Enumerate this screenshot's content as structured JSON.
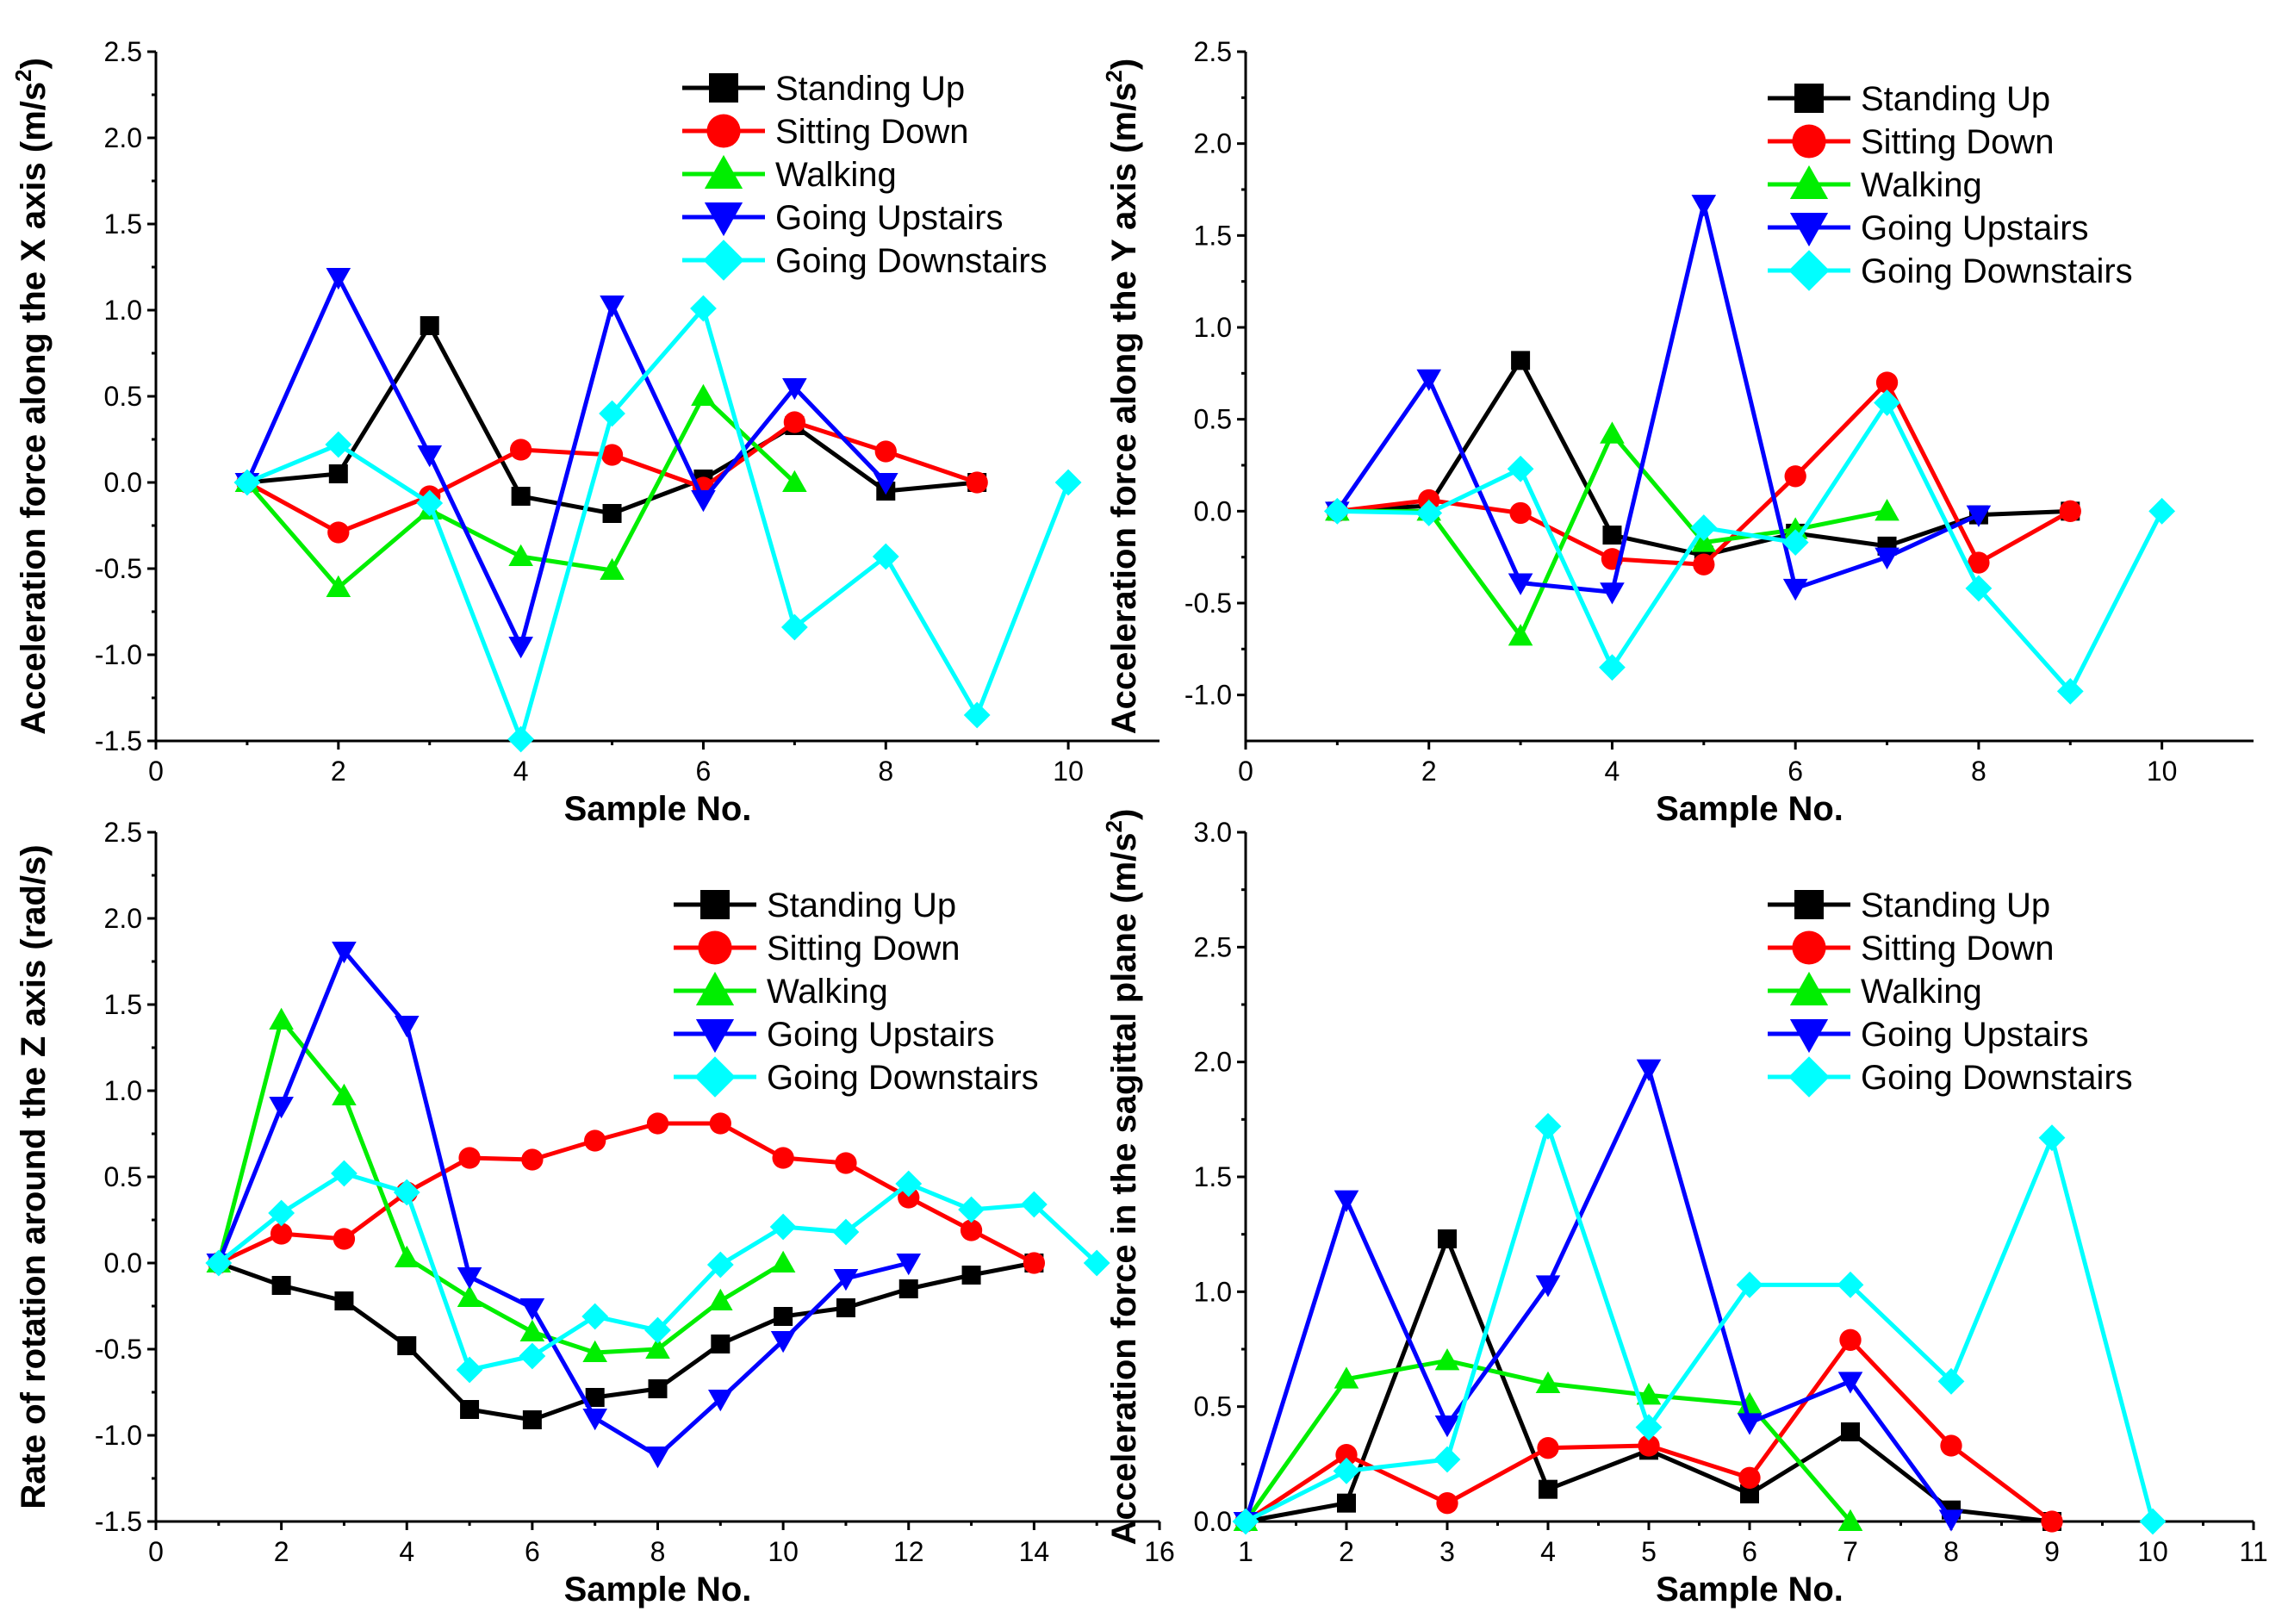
{
  "colors": {
    "Standing Up": "#000000",
    "Sitting Down": "#ff0000",
    "Walking": "#00ee00",
    "Going Upstairs": "#0000ff",
    "Going Downstairs": "#00ffff"
  },
  "markers": {
    "Standing Up": "square",
    "Sitting Down": "circle",
    "Walking": "triangle-up",
    "Going Upstairs": "triangle-down",
    "Going Downstairs": "diamond"
  },
  "chart_data": [
    {
      "type": "line",
      "title": "",
      "xlabel": "Sample No.",
      "ylabel": "Acceleration force along the X axis (m/s",
      "ylabel_sup": "2",
      "ylabel_suffix": ")",
      "xlim": [
        0,
        11
      ],
      "ylim": [
        -1.5,
        2.5
      ],
      "xticks": [
        0,
        2,
        4,
        6,
        8,
        10
      ],
      "xtick_labels": [
        "0",
        "2",
        "4",
        "6",
        "8",
        "10"
      ],
      "yticks": [
        -1.5,
        -1.0,
        -0.5,
        0.0,
        0.5,
        1.0,
        1.5,
        2.0,
        2.5
      ],
      "ytick_labels": [
        "-1.5",
        "-1.0",
        "-0.5",
        "0.0",
        "0.5",
        "1.0",
        "1.5",
        "2.0",
        "2.5"
      ],
      "legend": "top-right",
      "series": [
        {
          "name": "Standing Up",
          "x": [
            1,
            2,
            3,
            4,
            5,
            6,
            7,
            8,
            9
          ],
          "values": [
            0,
            0.05,
            0.91,
            -0.08,
            -0.18,
            0.02,
            0.33,
            -0.05,
            0
          ]
        },
        {
          "name": "Sitting Down",
          "x": [
            1,
            2,
            3,
            4,
            5,
            6,
            7,
            8,
            9
          ],
          "values": [
            0,
            -0.29,
            -0.08,
            0.19,
            0.16,
            -0.03,
            0.35,
            0.18,
            0
          ]
        },
        {
          "name": "Walking",
          "x": [
            1,
            2,
            3,
            4,
            5,
            6,
            7
          ],
          "values": [
            0,
            -0.61,
            -0.16,
            -0.43,
            -0.51,
            0.5,
            0
          ]
        },
        {
          "name": "Going Upstairs",
          "x": [
            1,
            2,
            3,
            4,
            5,
            6,
            7,
            8
          ],
          "values": [
            0,
            1.19,
            0.16,
            -0.95,
            1.03,
            -0.1,
            0.55,
            0
          ]
        },
        {
          "name": "Going Downstairs",
          "x": [
            1,
            2,
            3,
            4,
            5,
            6,
            7,
            8,
            9,
            10
          ],
          "values": [
            0,
            0.22,
            -0.12,
            -1.49,
            0.4,
            1.01,
            -0.84,
            -0.43,
            -1.35,
            0
          ]
        }
      ]
    },
    {
      "type": "line",
      "title": "",
      "xlabel": "Sample No.",
      "ylabel": "Acceleration force along the Y axis (m/s",
      "ylabel_sup": "2",
      "ylabel_suffix": ")",
      "xlim": [
        0,
        11
      ],
      "ylim": [
        -1.25,
        2.5
      ],
      "xticks": [
        0,
        2,
        4,
        6,
        8,
        10
      ],
      "xtick_labels": [
        "0",
        "2",
        "4",
        "6",
        "8",
        "10"
      ],
      "yticks": [
        -1.0,
        -0.5,
        0.0,
        0.5,
        1.0,
        1.5,
        2.0,
        2.5
      ],
      "ytick_labels": [
        "-1.0",
        "-0.5",
        "0.0",
        "0.5",
        "1.0",
        "1.5",
        "2.0",
        "2.5"
      ],
      "legend": "top-right",
      "series": [
        {
          "name": "Standing Up",
          "x": [
            1,
            2,
            3,
            4,
            5,
            6,
            7,
            8,
            9
          ],
          "values": [
            0,
            0.03,
            0.82,
            -0.13,
            -0.24,
            -0.12,
            -0.19,
            -0.02,
            0
          ]
        },
        {
          "name": "Sitting Down",
          "x": [
            1,
            2,
            3,
            4,
            5,
            6,
            7,
            8,
            9
          ],
          "values": [
            0,
            0.06,
            -0.01,
            -0.26,
            -0.29,
            0.19,
            0.7,
            -0.28,
            0
          ]
        },
        {
          "name": "Walking",
          "x": [
            1,
            2,
            3,
            4,
            5,
            6,
            7
          ],
          "values": [
            0,
            0,
            -0.68,
            0.42,
            -0.17,
            -0.1,
            0
          ]
        },
        {
          "name": "Going Upstairs",
          "x": [
            1,
            2,
            3,
            4,
            5,
            6,
            7,
            8
          ],
          "values": [
            0,
            0.72,
            -0.39,
            -0.44,
            1.67,
            -0.42,
            -0.25,
            -0.02
          ]
        },
        {
          "name": "Going Downstairs",
          "x": [
            1,
            2,
            3,
            4,
            5,
            6,
            7,
            8,
            9,
            10
          ],
          "values": [
            0,
            -0.01,
            0.23,
            -0.85,
            -0.09,
            -0.17,
            0.59,
            -0.42,
            -0.98,
            0
          ]
        }
      ]
    },
    {
      "type": "line",
      "title": "",
      "xlabel": "Sample No.",
      "ylabel": "Rate of rotation around the Z axis (rad/s)",
      "ylabel_sup": "",
      "ylabel_suffix": "",
      "xlim": [
        0,
        16
      ],
      "ylim": [
        -1.5,
        2.5
      ],
      "xticks": [
        0,
        2,
        4,
        6,
        8,
        10,
        12,
        14,
        16
      ],
      "xtick_labels": [
        "0",
        "2",
        "4",
        "6",
        "8",
        "10",
        "12",
        "14",
        "16"
      ],
      "yticks": [
        -1.5,
        -1.0,
        -0.5,
        0.0,
        0.5,
        1.0,
        1.5,
        2.0,
        2.5
      ],
      "ytick_labels": [
        "-1.5",
        "-1.0",
        "-0.5",
        "0.0",
        "0.5",
        "1.0",
        "1.5",
        "2.0",
        "2.5"
      ],
      "legend": "top-right",
      "series": [
        {
          "name": "Standing Up",
          "x": [
            1,
            2,
            3,
            4,
            5,
            6,
            7,
            8,
            9,
            10,
            11,
            12,
            13,
            14
          ],
          "values": [
            0,
            -0.13,
            -0.22,
            -0.48,
            -0.85,
            -0.91,
            -0.78,
            -0.73,
            -0.47,
            -0.31,
            -0.26,
            -0.15,
            -0.07,
            0
          ]
        },
        {
          "name": "Sitting Down",
          "x": [
            1,
            2,
            3,
            4,
            5,
            6,
            7,
            8,
            9,
            10,
            11,
            12,
            13,
            14
          ],
          "values": [
            0,
            0.17,
            0.14,
            0.41,
            0.61,
            0.6,
            0.71,
            0.81,
            0.81,
            0.61,
            0.58,
            0.38,
            0.19,
            0
          ]
        },
        {
          "name": "Walking",
          "x": [
            1,
            2,
            3,
            4,
            5,
            6,
            7,
            8,
            9,
            10
          ],
          "values": [
            0,
            1.41,
            0.97,
            0.03,
            -0.2,
            -0.4,
            -0.52,
            -0.5,
            -0.22,
            0
          ]
        },
        {
          "name": "Going Upstairs",
          "x": [
            1,
            2,
            3,
            4,
            5,
            6,
            7,
            8,
            9,
            10,
            11,
            12
          ],
          "values": [
            0,
            0.91,
            1.81,
            1.38,
            -0.08,
            -0.26,
            -0.9,
            -1.12,
            -0.79,
            -0.45,
            -0.09,
            0
          ]
        },
        {
          "name": "Going Downstairs",
          "x": [
            1,
            2,
            3,
            4,
            5,
            6,
            7,
            8,
            9,
            10,
            11,
            12,
            13,
            14,
            15
          ],
          "values": [
            0,
            0.29,
            0.52,
            0.41,
            -0.62,
            -0.54,
            -0.31,
            -0.39,
            -0.01,
            0.21,
            0.18,
            0.46,
            0.31,
            0.34,
            0
          ]
        }
      ]
    },
    {
      "type": "line",
      "title": "",
      "xlabel": "Sample No.",
      "ylabel": "Acceleration force in the sagittal plane (m/s",
      "ylabel_sup": "2",
      "ylabel_suffix": ")",
      "xlim": [
        1,
        11
      ],
      "ylim": [
        0,
        3.0
      ],
      "xticks": [
        1,
        2,
        3,
        4,
        5,
        6,
        7,
        8,
        9,
        10,
        11
      ],
      "xtick_labels": [
        "1",
        "2",
        "3",
        "4",
        "5",
        "6",
        "7",
        "8",
        "9",
        "10",
        "11"
      ],
      "yticks": [
        0.0,
        0.5,
        1.0,
        1.5,
        2.0,
        2.5,
        3.0
      ],
      "ytick_labels": [
        "0.0",
        "0.5",
        "1.0",
        "1.5",
        "2.0",
        "2.5",
        "3.0"
      ],
      "legend": "top-right",
      "series": [
        {
          "name": "Standing Up",
          "x": [
            1,
            2,
            3,
            4,
            5,
            6,
            7,
            8,
            9
          ],
          "values": [
            0,
            0.08,
            1.23,
            0.14,
            0.31,
            0.12,
            0.39,
            0.05,
            0
          ]
        },
        {
          "name": "Sitting Down",
          "x": [
            1,
            2,
            3,
            4,
            5,
            6,
            7,
            8,
            9
          ],
          "values": [
            0,
            0.29,
            0.08,
            0.32,
            0.33,
            0.19,
            0.79,
            0.33,
            0
          ]
        },
        {
          "name": "Walking",
          "x": [
            1,
            2,
            3,
            4,
            5,
            6,
            7
          ],
          "values": [
            0,
            0.62,
            0.7,
            0.6,
            0.55,
            0.51,
            0
          ]
        },
        {
          "name": "Going Upstairs",
          "x": [
            1,
            2,
            3,
            4,
            5,
            6,
            7,
            8
          ],
          "values": [
            0,
            1.4,
            0.42,
            1.03,
            1.97,
            0.43,
            0.61,
            0.01
          ]
        },
        {
          "name": "Going Downstairs",
          "x": [
            1,
            2,
            3,
            4,
            5,
            6,
            7,
            8,
            9,
            10
          ],
          "values": [
            0,
            0.22,
            0.27,
            1.72,
            0.41,
            1.03,
            1.03,
            0.61,
            1.67,
            0
          ]
        }
      ]
    }
  ]
}
